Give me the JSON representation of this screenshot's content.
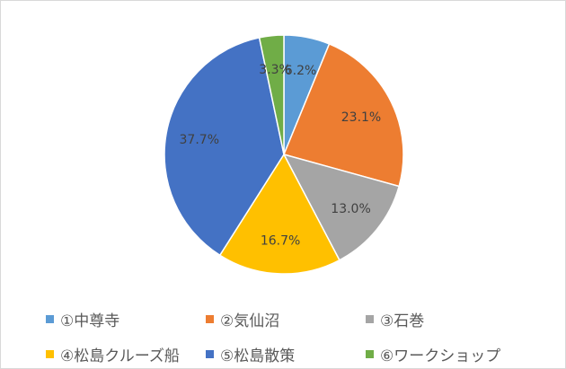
{
  "chart_data": {
    "type": "pie",
    "categories": [
      "①中尊寺",
      "②気仙沼",
      "③石巻",
      "④松島クルーズ船",
      "⑤松島散策",
      "⑥ワークショップ"
    ],
    "values": [
      6.2,
      23.1,
      13.0,
      16.7,
      37.7,
      3.3
    ],
    "labels": [
      "6.2%",
      "23.1%",
      "13.0%",
      "16.7%",
      "37.7%",
      "3.3%"
    ],
    "colors": [
      "#5b9bd5",
      "#ed7d31",
      "#a5a5a5",
      "#ffc000",
      "#4472c4",
      "#70ad47"
    ],
    "title": "",
    "legend_position": "bottom"
  }
}
